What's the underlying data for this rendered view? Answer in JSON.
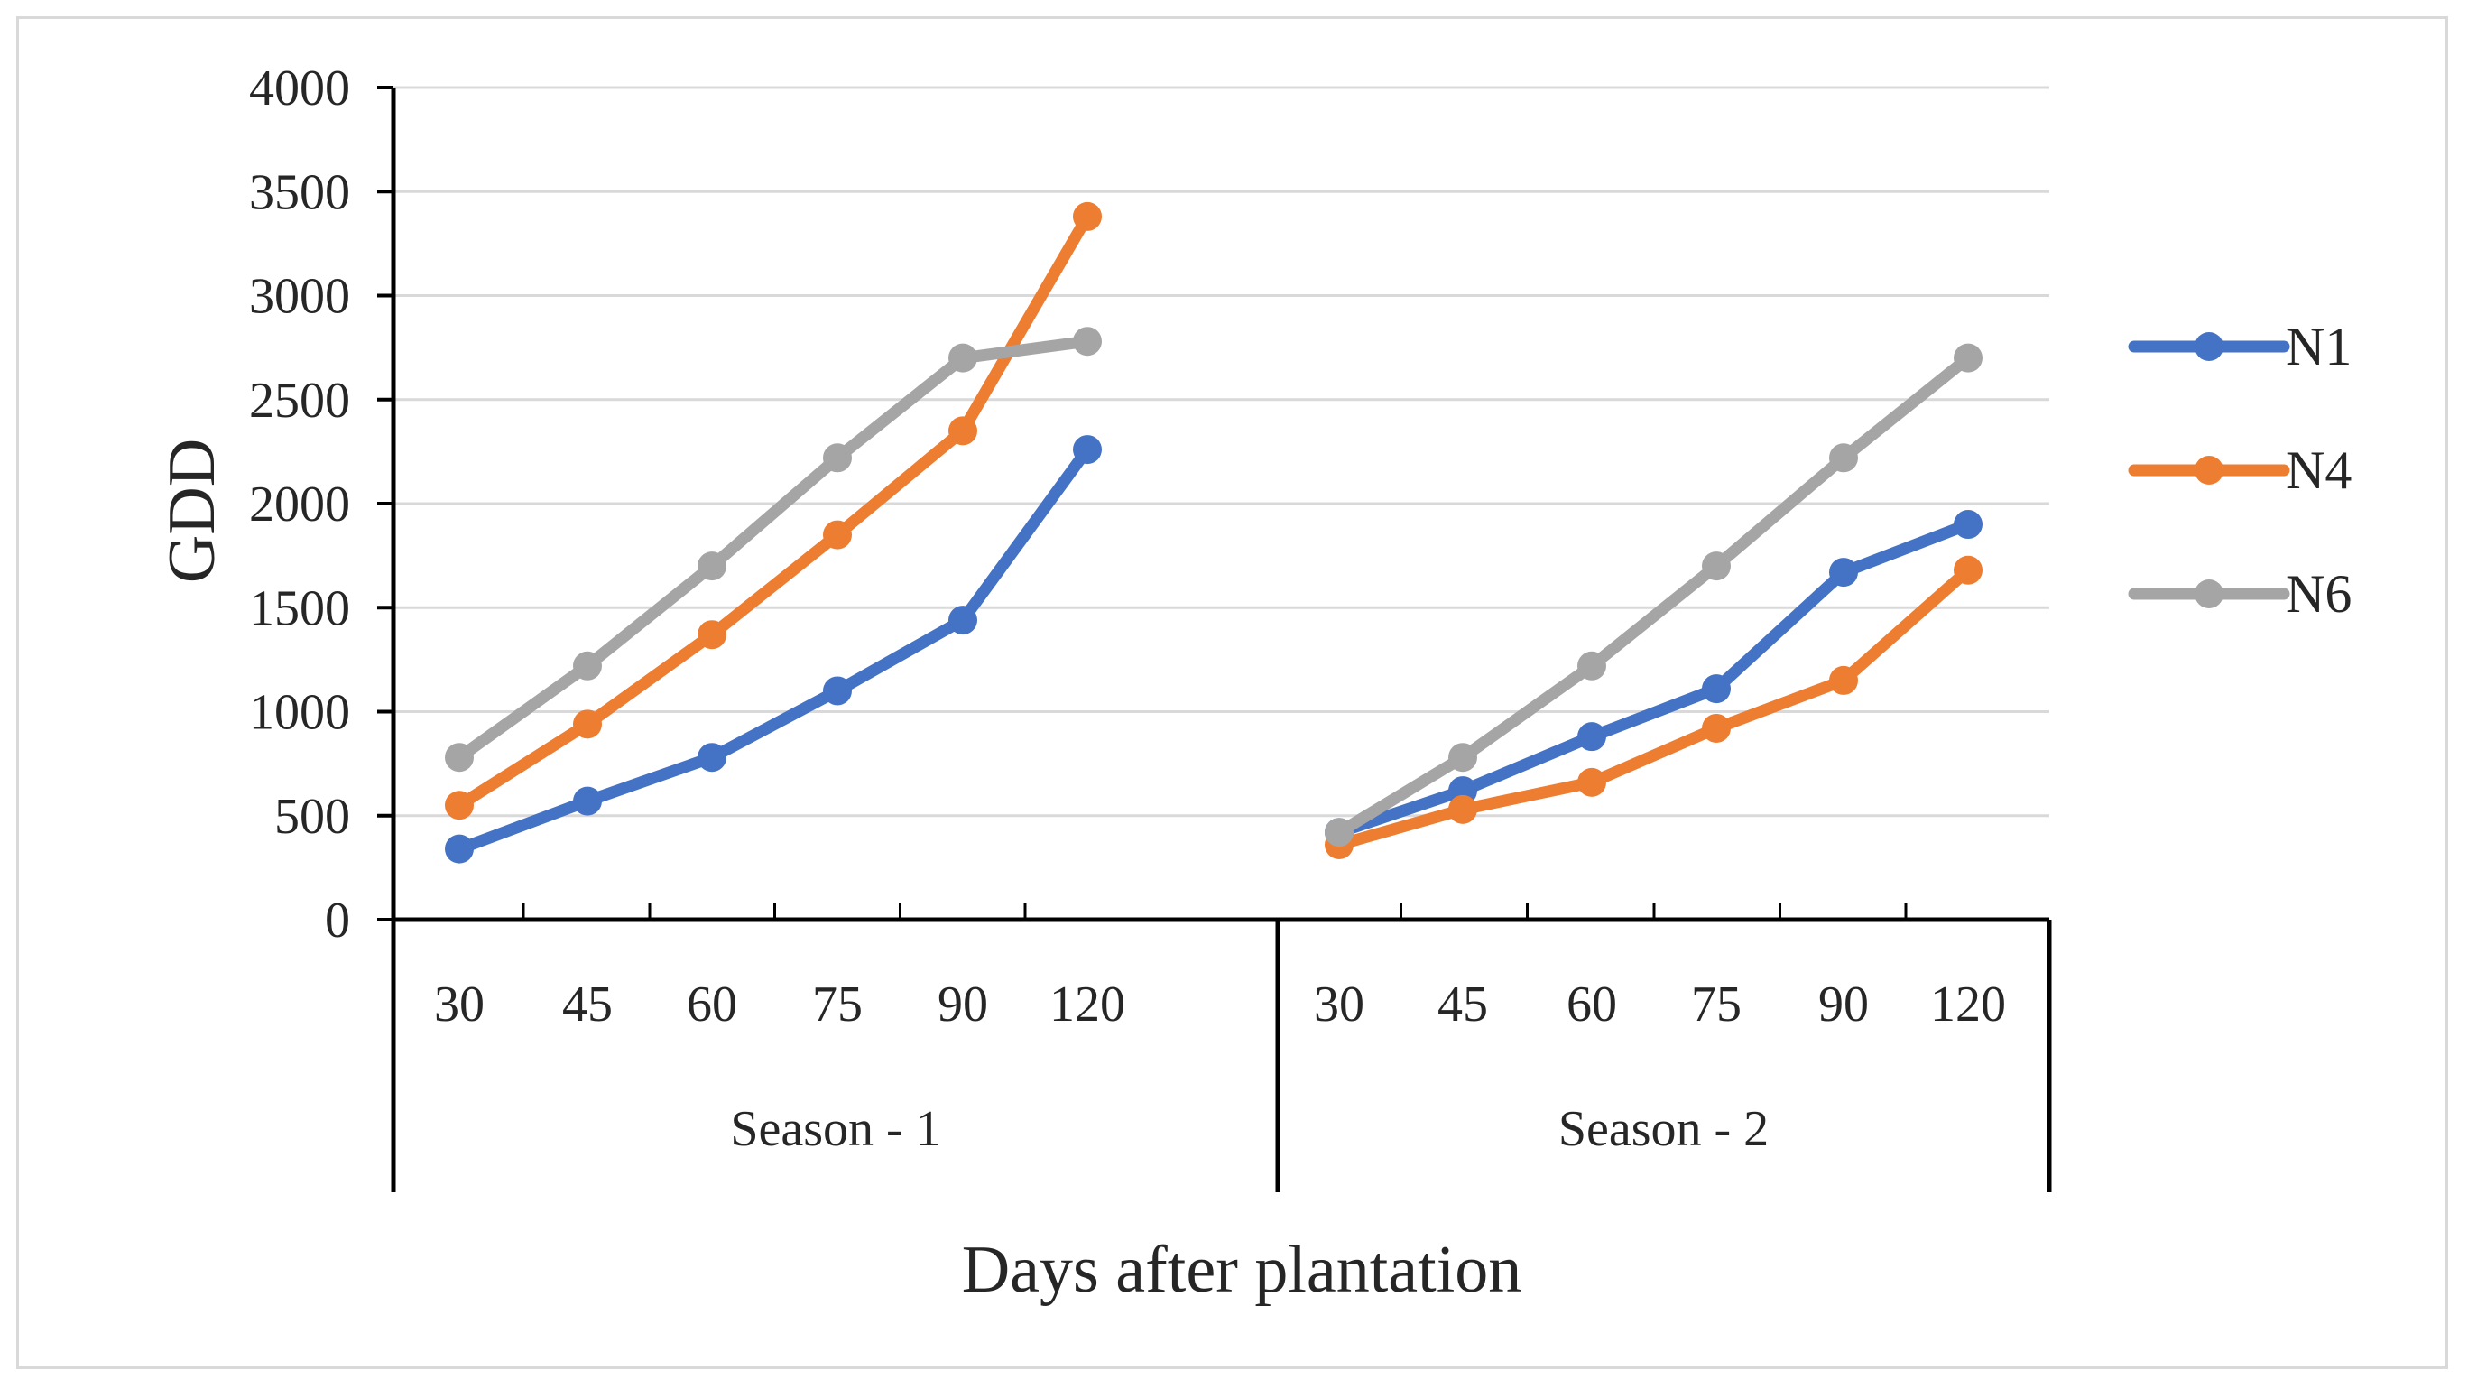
{
  "chart_data": {
    "type": "line",
    "title": "",
    "xlabel": "Days after plantation",
    "ylabel": "GDD",
    "ylim": [
      0,
      4000
    ],
    "yticks": [
      "0",
      "500",
      "1000",
      "1500",
      "2000",
      "2500",
      "3000",
      "3500",
      "4000"
    ],
    "grid": "horizontal",
    "legend_position": "right",
    "groups": [
      {
        "label": "Season - 1",
        "categories": [
          "30",
          "45",
          "60",
          "75",
          "90",
          "120"
        ]
      },
      {
        "label": "Season - 2",
        "categories": [
          "30",
          "45",
          "60",
          "75",
          "90",
          "120"
        ]
      }
    ],
    "series": [
      {
        "name": "N1",
        "color": "#4472c4",
        "values": [
          [
            340,
            570,
            780,
            1100,
            1440,
            2260
          ],
          [
            420,
            620,
            880,
            1110,
            1670,
            1900
          ]
        ]
      },
      {
        "name": "N4",
        "color": "#ed7d31",
        "values": [
          [
            550,
            940,
            1370,
            1850,
            2350,
            3380
          ],
          [
            360,
            530,
            660,
            920,
            1150,
            1680
          ]
        ]
      },
      {
        "name": "N6",
        "color": "#a5a5a5",
        "values": [
          [
            780,
            1220,
            1700,
            2220,
            2700,
            2780
          ],
          [
            420,
            780,
            1220,
            1700,
            2220,
            2700
          ]
        ]
      }
    ]
  }
}
